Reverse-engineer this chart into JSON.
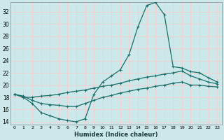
{
  "xlabel": "Humidex (Indice chaleur)",
  "background_color": "#cce8ea",
  "grid_color": "#f0d0d0",
  "line_color": "#1a6e6a",
  "ylim": [
    13.5,
    33.5
  ],
  "xlim": [
    -0.5,
    23.5
  ],
  "yticks": [
    14,
    16,
    18,
    20,
    22,
    24,
    26,
    28,
    30,
    32
  ],
  "xticks": [
    0,
    1,
    2,
    3,
    4,
    5,
    6,
    7,
    8,
    9,
    10,
    11,
    12,
    13,
    14,
    15,
    16,
    17,
    18,
    19,
    20,
    21,
    22,
    23
  ],
  "curve1_x": [
    0,
    1,
    2,
    3,
    4,
    5,
    6,
    7,
    8,
    9,
    10,
    11,
    12,
    13,
    14,
    15,
    16,
    17,
    18,
    19,
    20,
    21,
    22,
    23
  ],
  "curve1_y": [
    18.5,
    18.0,
    17.0,
    15.5,
    15.0,
    14.5,
    14.2,
    14.0,
    14.5,
    18.5,
    20.5,
    21.5,
    22.5,
    25.0,
    29.5,
    33.0,
    33.5,
    31.5,
    23.0,
    22.8,
    22.2,
    22.0,
    21.2,
    20.5
  ],
  "curve2_x": [
    0,
    1,
    2,
    3,
    4,
    5,
    6,
    7,
    8,
    9,
    10,
    11,
    12,
    13,
    14,
    15,
    16,
    17,
    18,
    19,
    20,
    21,
    22,
    23
  ],
  "curve2_y": [
    18.5,
    18.0,
    18.0,
    18.2,
    18.3,
    18.5,
    18.8,
    19.0,
    19.2,
    19.5,
    19.8,
    20.0,
    20.3,
    20.7,
    21.0,
    21.3,
    21.5,
    21.8,
    22.0,
    22.3,
    21.5,
    21.0,
    20.5,
    20.2
  ],
  "curve3_x": [
    0,
    1,
    2,
    3,
    4,
    5,
    6,
    7,
    8,
    9,
    10,
    11,
    12,
    13,
    14,
    15,
    16,
    17,
    18,
    19,
    20,
    21,
    22,
    23
  ],
  "curve3_y": [
    18.5,
    18.2,
    17.5,
    17.0,
    16.8,
    16.7,
    16.5,
    16.5,
    17.0,
    17.5,
    18.0,
    18.3,
    18.7,
    19.0,
    19.3,
    19.5,
    19.8,
    20.0,
    20.3,
    20.5,
    20.0,
    20.0,
    19.8,
    19.7
  ]
}
